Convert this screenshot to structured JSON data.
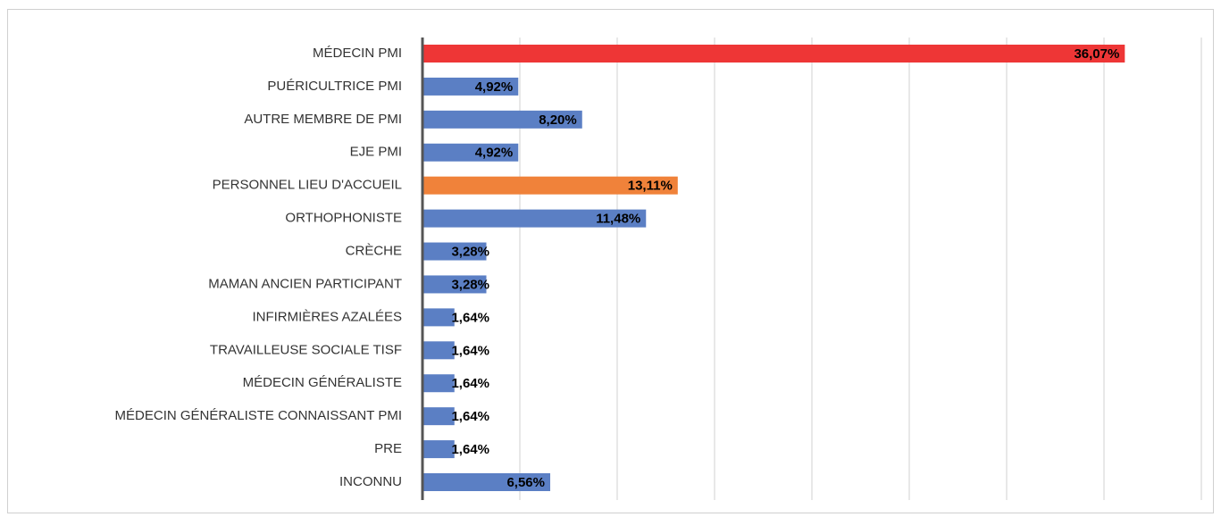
{
  "chart_data": {
    "type": "bar",
    "orientation": "horizontal",
    "categories": [
      "MÉDECIN PMI",
      "PUÉRICULTRICE PMI",
      "AUTRE MEMBRE DE PMI",
      "EJE PMI",
      "PERSONNEL LIEU D'ACCUEIL",
      "ORTHOPHONISTE",
      "CRÈCHE",
      "MAMAN ANCIEN PARTICIPANT",
      "INFIRMIÈRES AZALÉES",
      "TRAVAILLEUSE SOCIALE TISF",
      "MÉDECIN GÉNÉRALISTE",
      "MÉDECIN GÉNÉRALISTE CONNAISSANT PMI",
      "PRE",
      "INCONNU"
    ],
    "values": [
      36.07,
      4.92,
      8.2,
      4.92,
      13.11,
      11.48,
      3.28,
      3.28,
      1.64,
      1.64,
      1.64,
      1.64,
      1.64,
      6.56
    ],
    "value_labels": [
      "36,07%",
      "4,92%",
      "8,20%",
      "4,92%",
      "13,11%",
      "11,48%",
      "3,28%",
      "3,28%",
      "1,64%",
      "1,64%",
      "1,64%",
      "1,64%",
      "1,64%",
      "6,56%"
    ],
    "colors": [
      "#ee3636",
      "#5b7fc4",
      "#5b7fc4",
      "#5b7fc4",
      "#f0823a",
      "#5b7fc4",
      "#5b7fc4",
      "#5b7fc4",
      "#5b7fc4",
      "#5b7fc4",
      "#5b7fc4",
      "#5b7fc4",
      "#5b7fc4",
      "#5b7fc4"
    ],
    "xlim": [
      0,
      40
    ],
    "xticks": [
      0,
      5,
      10,
      15,
      20,
      25,
      30,
      35,
      40
    ],
    "grid": true
  }
}
